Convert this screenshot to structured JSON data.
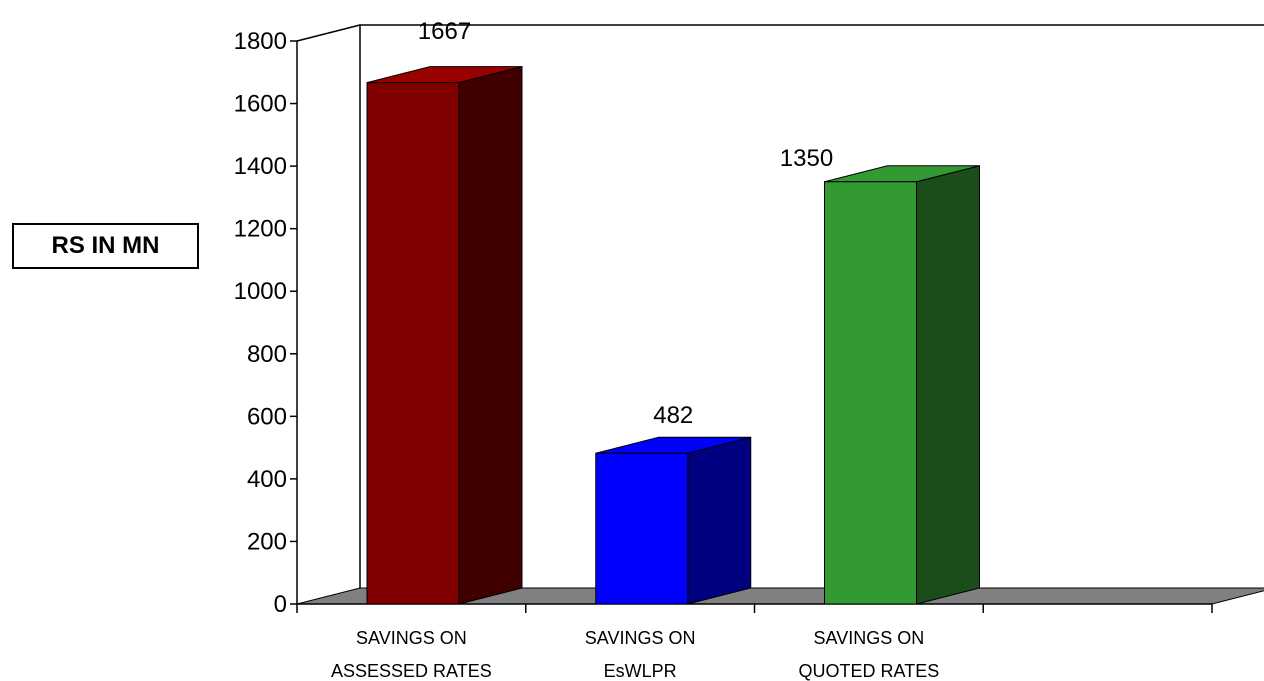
{
  "chart_data": {
    "type": "bar",
    "three_d": true,
    "title": "",
    "xlabel": "",
    "ylabel": "RS IN MN",
    "ylim": [
      0,
      1800
    ],
    "yticks": [
      0,
      200,
      400,
      600,
      800,
      1000,
      1200,
      1400,
      1600,
      1800
    ],
    "ytick_labels": [
      "0",
      "200",
      "400",
      "600",
      "800",
      "1000",
      "1200",
      "1400",
      "1600",
      "1800"
    ],
    "grid": false,
    "legend": "none",
    "categories": [
      [
        "SAVINGS ON",
        "ASSESSED RATES"
      ],
      [
        "SAVINGS ON",
        "EsWLPR"
      ],
      [
        "SAVINGS ON",
        "QUOTED RATES"
      ]
    ],
    "values": [
      1667,
      482,
      1350
    ],
    "data_labels": [
      "1667",
      "482",
      "1350"
    ],
    "colors": [
      {
        "front": "#800000",
        "side": "#400000",
        "top": "#990000"
      },
      {
        "front": "#0000ff",
        "side": "#000080",
        "top": "#0000ff"
      },
      {
        "front": "#339933",
        "side": "#1b4d1b",
        "top": "#339933"
      }
    ],
    "floor_color": "#808080",
    "wall_color": "#ffffff"
  }
}
